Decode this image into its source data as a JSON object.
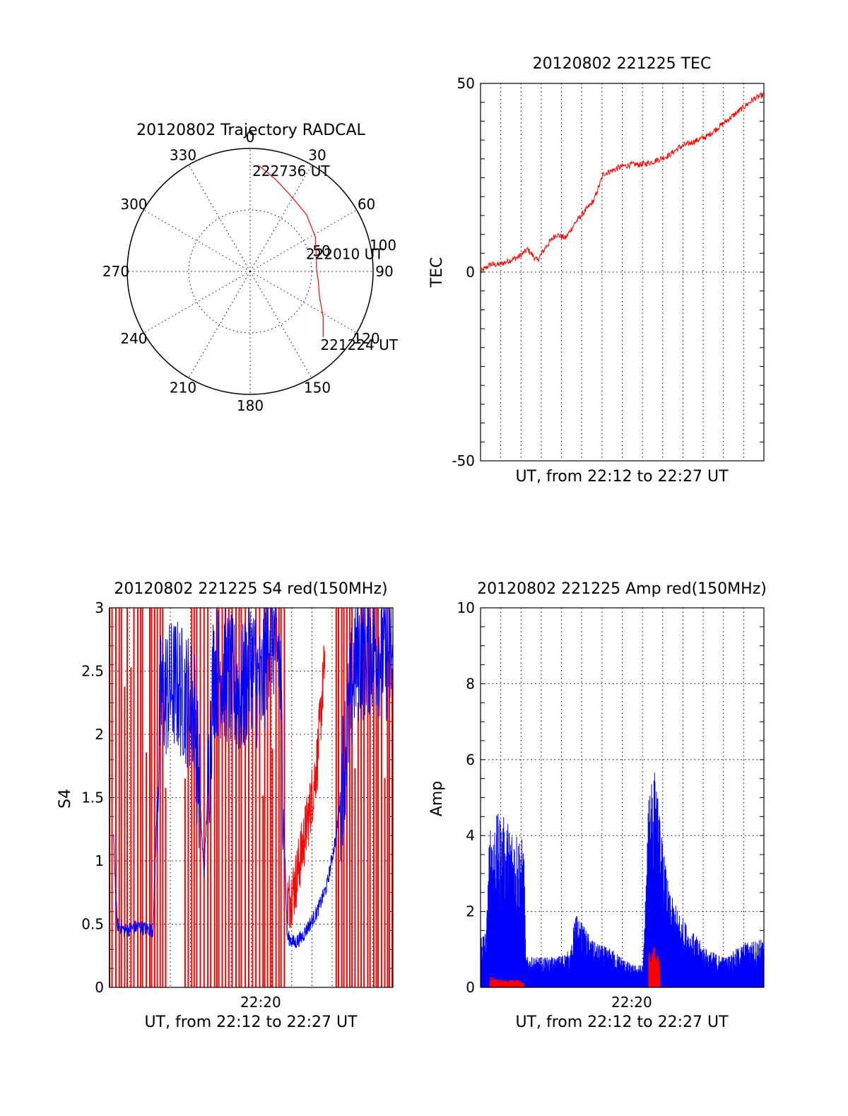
{
  "page": {
    "background": "#ffffff"
  },
  "colors": {
    "red": "#ff0000",
    "blue": "#0000ff",
    "black": "#000000"
  },
  "chart_data": [
    {
      "id": "trajectory",
      "type": "polar",
      "title": "20120802 Trajectory RADCAL",
      "angle_labels": [
        "0",
        "30",
        "60",
        "90",
        "120",
        "150",
        "180",
        "210",
        "240",
        "270",
        "300",
        "330"
      ],
      "radial_labels": [
        "50",
        "100"
      ],
      "radial_ticks": [
        50,
        100
      ],
      "rlim": [
        0,
        100
      ],
      "grid": true,
      "track": {
        "color": "#ff0000",
        "points": [
          {
            "az": 5,
            "r": 86
          },
          {
            "az": 15,
            "r": 78
          },
          {
            "az": 28,
            "r": 70
          },
          {
            "az": 45,
            "r": 65
          },
          {
            "az": 62,
            "r": 60
          },
          {
            "az": 78,
            "r": 55
          },
          {
            "az": 88,
            "r": 54
          },
          {
            "az": 98,
            "r": 56
          },
          {
            "az": 110,
            "r": 60
          },
          {
            "az": 122,
            "r": 70
          },
          {
            "az": 132,
            "r": 80
          }
        ]
      },
      "annotations": [
        {
          "text": "222736 UT",
          "az": 5,
          "r": 86
        },
        {
          "text": "222010 UT",
          "az": 88,
          "r": 54
        },
        {
          "text": "221224 UT",
          "az": 132,
          "r": 80
        }
      ]
    },
    {
      "id": "tec",
      "type": "line",
      "title": "20120802 221225 TEC",
      "xlabel": "UT, from 22:12 to 22:27 UT",
      "ylabel": "TEC",
      "xlim": [
        0,
        15
      ],
      "ylim": [
        -50,
        50
      ],
      "yticks": [
        -50,
        0,
        50
      ],
      "grid": true,
      "series": [
        {
          "color": "#ff0000",
          "x": [
            0,
            0.5,
            1.0,
            1.5,
            2.0,
            2.5,
            3.0,
            3.5,
            4.0,
            4.5,
            5.0,
            5.5,
            6.0,
            6.5,
            7.0,
            7.5,
            8.0,
            8.5,
            9.0,
            9.5,
            10.0,
            10.5,
            11.0,
            11.5,
            12.0,
            12.5,
            13.0,
            13.5,
            14.0,
            14.5,
            15.0
          ],
          "values": [
            0,
            2,
            2,
            3,
            4,
            6,
            3,
            7,
            10,
            9,
            13,
            16,
            19,
            26,
            27,
            28,
            28.5,
            28.5,
            29,
            30,
            31,
            33,
            34,
            35,
            36,
            38,
            40,
            42,
            44,
            46,
            47
          ]
        }
      ]
    },
    {
      "id": "s4",
      "type": "line",
      "title": "20120802 221225 S4 red(150MHz)",
      "xlabel": "UT, from 22:12 to 22:27 UT",
      "ylabel": "S4",
      "xtick_labels": [
        "22:20"
      ],
      "xticks": [
        8
      ],
      "xlim": [
        0,
        15
      ],
      "ylim": [
        0,
        3
      ],
      "yticks": [
        0,
        0.5,
        1,
        1.5,
        2,
        2.5,
        3
      ],
      "ytick_labels": [
        "0",
        "0.5",
        "1",
        "1.5",
        "2",
        "2.5",
        "3"
      ],
      "grid": true,
      "series": [
        {
          "color": "#ff0000",
          "x": [
            9.4,
            9.8,
            10.2,
            10.6,
            11.0,
            11.4
          ],
          "values": [
            0.65,
            0.8,
            1.1,
            1.4,
            1.8,
            2.6
          ]
        },
        {
          "color": "#0000ff",
          "x": [
            0.2,
            0.4,
            0.8,
            1.5,
            2.3,
            2.7,
            3.5,
            4.5,
            5.0,
            5.5,
            6.0,
            7.0,
            7.5,
            8.0,
            8.5,
            9.0,
            9.4,
            9.8,
            10.2,
            10.6,
            11.0,
            11.5,
            12.0,
            13.0,
            14.0,
            15.0
          ],
          "values": [
            1.2,
            0.5,
            0.45,
            0.48,
            0.45,
            2.3,
            2.4,
            2.2,
            0.9,
            2.5,
            2.5,
            2.3,
            2.6,
            2.3,
            2.9,
            2.6,
            0.4,
            0.35,
            0.4,
            0.5,
            0.6,
            0.8,
            1.2,
            2.6,
            2.7,
            2.6
          ]
        }
      ],
      "red_spike_bands": [
        [
          0.0,
          3.0
        ],
        [
          4.0,
          9.3
        ],
        [
          12.0,
          15.0
        ]
      ]
    },
    {
      "id": "amp",
      "type": "line",
      "title": "20120802 221225 Amp red(150MHz)",
      "xlabel": "UT, from 22:12 to 22:27 UT",
      "ylabel": "Amp",
      "xtick_labels": [
        "22:20"
      ],
      "xticks": [
        8
      ],
      "xlim": [
        0,
        15
      ],
      "ylim": [
        0,
        10
      ],
      "yticks": [
        0,
        2,
        4,
        6,
        8,
        10
      ],
      "ytick_labels": [
        "0",
        "2",
        "4",
        "6",
        "8",
        "10"
      ],
      "grid": true,
      "series": [
        {
          "color": "#0000ff",
          "x": [
            0.0,
            0.3,
            0.5,
            1.0,
            1.5,
            2.0,
            2.3,
            2.4,
            3.0,
            4.0,
            4.8,
            5.0,
            6.0,
            7.0,
            8.0,
            8.6,
            9.0,
            9.3,
            9.6,
            10.0,
            11.0,
            12.0,
            13.0,
            14.0,
            15.0
          ],
          "values": [
            1.5,
            1.5,
            4.5,
            4.6,
            4.4,
            4.2,
            3.8,
            0.8,
            0.8,
            0.8,
            1.0,
            2.0,
            1.2,
            1.0,
            0.6,
            0.6,
            6.5,
            5.5,
            4.0,
            2.5,
            1.6,
            1.0,
            0.8,
            1.2,
            1.3
          ]
        },
        {
          "color": "#ff0000",
          "x": [
            0.5,
            1.0,
            1.5,
            2.0,
            2.3,
            8.9,
            9.2,
            9.5
          ],
          "values": [
            0.3,
            0.2,
            0.2,
            0.2,
            0.1,
            0.9,
            1.1,
            0.7
          ]
        }
      ]
    }
  ]
}
